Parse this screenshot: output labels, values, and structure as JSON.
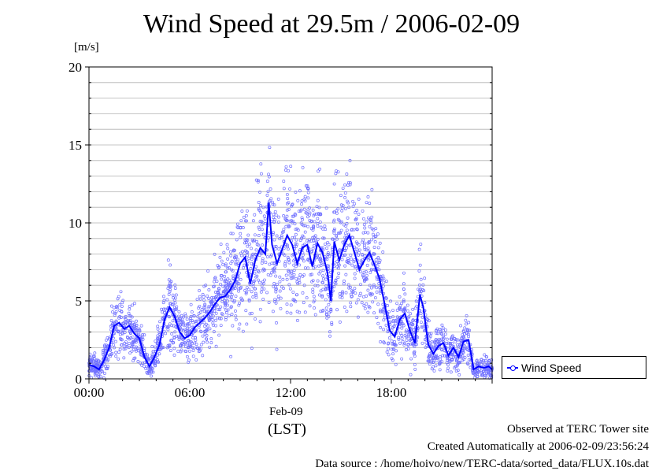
{
  "chart_data": {
    "type": "scatter",
    "title": "Wind Speed at 29.5m / 2006-02-09",
    "ylabel": "[m/s]",
    "xlabel": "(LST)",
    "x_date_label": "Feb-09",
    "ylim": [
      0,
      20
    ],
    "xlim_hours": [
      0,
      24
    ],
    "y_ticks": [
      "0",
      "5",
      "10",
      "15",
      "20"
    ],
    "x_ticks": [
      {
        "hour": 0,
        "label": "00:00"
      },
      {
        "hour": 6,
        "label": "06:00"
      },
      {
        "hour": 12,
        "label": "12:00"
      },
      {
        "hour": 18,
        "label": "18:00"
      }
    ],
    "grid": "horizontal",
    "legend_position": "right",
    "series": [
      {
        "name": "Wind Speed",
        "color": "#0000ff",
        "line_points": [
          [
            0.0,
            0.9
          ],
          [
            0.3,
            0.8
          ],
          [
            0.6,
            0.6
          ],
          [
            0.9,
            1.2
          ],
          [
            1.2,
            2.0
          ],
          [
            1.5,
            3.4
          ],
          [
            1.8,
            3.6
          ],
          [
            2.1,
            3.2
          ],
          [
            2.4,
            3.4
          ],
          [
            2.7,
            2.9
          ],
          [
            3.0,
            2.6
          ],
          [
            3.3,
            1.4
          ],
          [
            3.6,
            0.8
          ],
          [
            3.9,
            1.4
          ],
          [
            4.2,
            2.2
          ],
          [
            4.5,
            3.8
          ],
          [
            4.8,
            4.6
          ],
          [
            5.1,
            4.0
          ],
          [
            5.4,
            3.0
          ],
          [
            5.7,
            2.6
          ],
          [
            6.0,
            2.8
          ],
          [
            6.3,
            3.3
          ],
          [
            6.6,
            3.6
          ],
          [
            6.9,
            3.9
          ],
          [
            7.2,
            4.3
          ],
          [
            7.5,
            4.8
          ],
          [
            7.8,
            5.2
          ],
          [
            8.1,
            5.3
          ],
          [
            8.4,
            5.7
          ],
          [
            8.7,
            6.3
          ],
          [
            9.0,
            7.4
          ],
          [
            9.3,
            7.8
          ],
          [
            9.6,
            6.1
          ],
          [
            9.9,
            7.6
          ],
          [
            10.2,
            8.4
          ],
          [
            10.5,
            8.0
          ],
          [
            10.7,
            11.3
          ],
          [
            10.9,
            8.6
          ],
          [
            11.2,
            7.4
          ],
          [
            11.5,
            8.3
          ],
          [
            11.8,
            9.2
          ],
          [
            12.1,
            8.6
          ],
          [
            12.4,
            7.4
          ],
          [
            12.7,
            8.4
          ],
          [
            13.0,
            8.6
          ],
          [
            13.3,
            7.2
          ],
          [
            13.6,
            8.7
          ],
          [
            13.9,
            8.1
          ],
          [
            14.2,
            6.8
          ],
          [
            14.4,
            5.0
          ],
          [
            14.6,
            8.8
          ],
          [
            14.9,
            7.6
          ],
          [
            15.2,
            8.6
          ],
          [
            15.5,
            9.2
          ],
          [
            15.8,
            8.1
          ],
          [
            16.1,
            7.0
          ],
          [
            16.4,
            7.6
          ],
          [
            16.7,
            8.1
          ],
          [
            17.0,
            7.3
          ],
          [
            17.3,
            6.4
          ],
          [
            17.6,
            4.8
          ],
          [
            17.9,
            3.1
          ],
          [
            18.2,
            2.7
          ],
          [
            18.5,
            3.8
          ],
          [
            18.8,
            4.2
          ],
          [
            19.1,
            3.1
          ],
          [
            19.4,
            2.3
          ],
          [
            19.7,
            5.4
          ],
          [
            19.9,
            4.6
          ],
          [
            20.2,
            2.2
          ],
          [
            20.5,
            1.6
          ],
          [
            20.8,
            2.1
          ],
          [
            21.1,
            2.3
          ],
          [
            21.4,
            1.5
          ],
          [
            21.7,
            2.0
          ],
          [
            22.0,
            1.4
          ],
          [
            22.3,
            2.4
          ],
          [
            22.6,
            2.5
          ],
          [
            22.9,
            0.6
          ],
          [
            23.2,
            0.8
          ],
          [
            23.5,
            0.7
          ],
          [
            23.8,
            0.8
          ],
          [
            24.0,
            0.6
          ]
        ]
      }
    ]
  },
  "footer": {
    "line1": "Observed at TERC Tower site",
    "line2": "Created Automatically at 2006-02-09/23:56:24",
    "line3": "Data source : /home/hoivo/new/TERC-data/sorted_data/FLUX.10s.dat"
  }
}
